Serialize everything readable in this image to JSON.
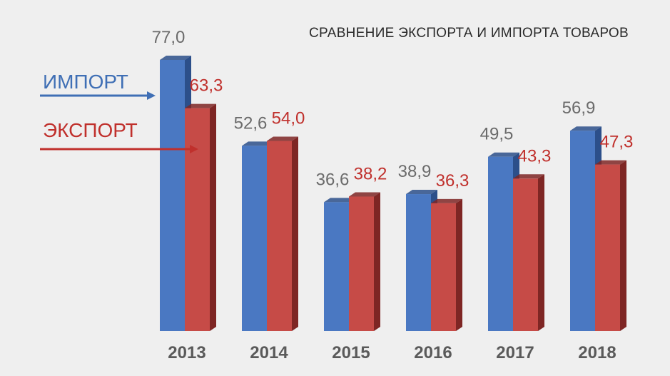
{
  "chart_data": {
    "type": "bar",
    "title": "СРАВНЕНИЕ ЭКСПОРТА И ИМПОРТА ТОВАРОВ",
    "categories": [
      "2013",
      "2014",
      "2015",
      "2016",
      "2017",
      "2018"
    ],
    "series": [
      {
        "name": "ИМПОРТ",
        "values": [
          77.0,
          52.6,
          36.6,
          38.9,
          49.5,
          56.9
        ],
        "labels": [
          "77,0",
          "52,6",
          "36,6",
          "38,9",
          "49,5",
          "56,9"
        ]
      },
      {
        "name": "ЭКСПОРТ",
        "values": [
          63.3,
          54.0,
          38.2,
          36.3,
          43.3,
          47.3
        ],
        "labels": [
          "63,3",
          "54,0",
          "38,2",
          "36,3",
          "43,3",
          "47,3"
        ]
      }
    ],
    "ylim": [
      0,
      77.0
    ],
    "grid": false,
    "legend": "left",
    "colors": {
      "import": "#4a78c2",
      "import_dark": "#2c4f8a",
      "export": "#c64b47",
      "export_dark": "#7e2624",
      "import_label": "#6b6b6b",
      "export_label": "#c0302c"
    }
  }
}
